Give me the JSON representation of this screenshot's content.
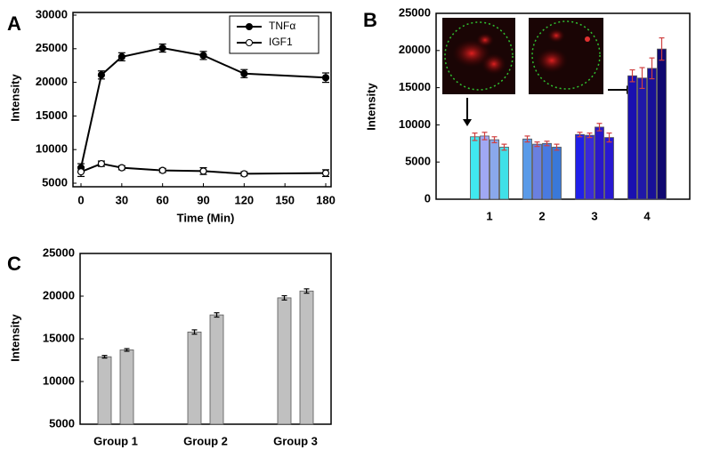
{
  "chart_data": [
    {
      "type": "line",
      "panel": "A",
      "x_label": "Time (Min)",
      "y_label": "Intensity",
      "x": [
        0,
        15,
        30,
        60,
        90,
        120,
        180
      ],
      "series": [
        {
          "name": "TNFα",
          "color": "#000000",
          "marker_fill": "#000000",
          "values": [
            7300,
            21100,
            23800,
            25100,
            24000,
            21300,
            20700
          ],
          "errors": [
            600,
            600,
            600,
            600,
            600,
            600,
            700
          ]
        },
        {
          "name": "IGF1",
          "color": "#000000",
          "marker_fill": "#ffffff",
          "values": [
            6700,
            7900,
            7300,
            6900,
            6800,
            6400,
            6500
          ],
          "errors": [
            700,
            400,
            300,
            300,
            500,
            300,
            500
          ]
        }
      ],
      "xlim": [
        0,
        180
      ],
      "xticks": [
        0,
        30,
        60,
        90,
        120,
        150,
        180
      ],
      "ylim": [
        5000,
        30000
      ],
      "yticks": [
        5000,
        10000,
        15000,
        20000,
        25000,
        30000
      ],
      "legend": "top-right"
    },
    {
      "type": "bar",
      "panel": "B",
      "y_label": "Intensity",
      "categories": [
        "1",
        "2",
        "3",
        "4"
      ],
      "series": [
        {
          "colors": [
            "#40e8f0",
            "#5a9ae8",
            "#2020e8",
            "#1a10b0"
          ],
          "values": [
            8400,
            8100,
            8700,
            16600
          ],
          "errors": [
            500,
            400,
            300,
            800
          ]
        },
        {
          "colors": [
            "#a0a8f4",
            "#6a80e0",
            "#3a2ad8",
            "#2018a8"
          ],
          "values": [
            8500,
            7400,
            8600,
            16300
          ],
          "errors": [
            500,
            300,
            300,
            1400
          ]
        },
        {
          "colors": [
            "#8aa8ec",
            "#4a7ae0",
            "#2a18c8",
            "#181098"
          ],
          "values": [
            8000,
            7500,
            9700,
            17600
          ],
          "errors": [
            400,
            300,
            500,
            1400
          ]
        },
        {
          "colors": [
            "#40e0e8",
            "#3a78d8",
            "#2818d0",
            "#100870"
          ],
          "values": [
            7000,
            7000,
            8300,
            20200
          ],
          "errors": [
            400,
            400,
            600,
            1500
          ]
        }
      ],
      "error_color": "#d04040",
      "ylim": [
        0,
        25000
      ],
      "yticks": [
        0,
        5000,
        10000,
        15000,
        20000,
        25000
      ]
    },
    {
      "type": "bar",
      "panel": "C",
      "y_label": "Intensity",
      "categories": [
        "Group 1",
        "Group 2",
        "Group 3"
      ],
      "series": [
        {
          "colors": [
            "#c0c0c0",
            "#c0c0c0",
            "#c0c0c0"
          ],
          "values": [
            12900,
            15800,
            19800
          ],
          "errors": [
            150,
            250,
            250
          ]
        },
        {
          "colors": [
            "#c0c0c0",
            "#c0c0c0",
            "#c0c0c0"
          ],
          "values": [
            13700,
            17800,
            20600
          ],
          "errors": [
            150,
            250,
            250
          ]
        }
      ],
      "error_color": "#000000",
      "ylim": [
        5000,
        25000
      ],
      "yticks": [
        5000,
        10000,
        15000,
        20000,
        25000
      ]
    }
  ]
}
